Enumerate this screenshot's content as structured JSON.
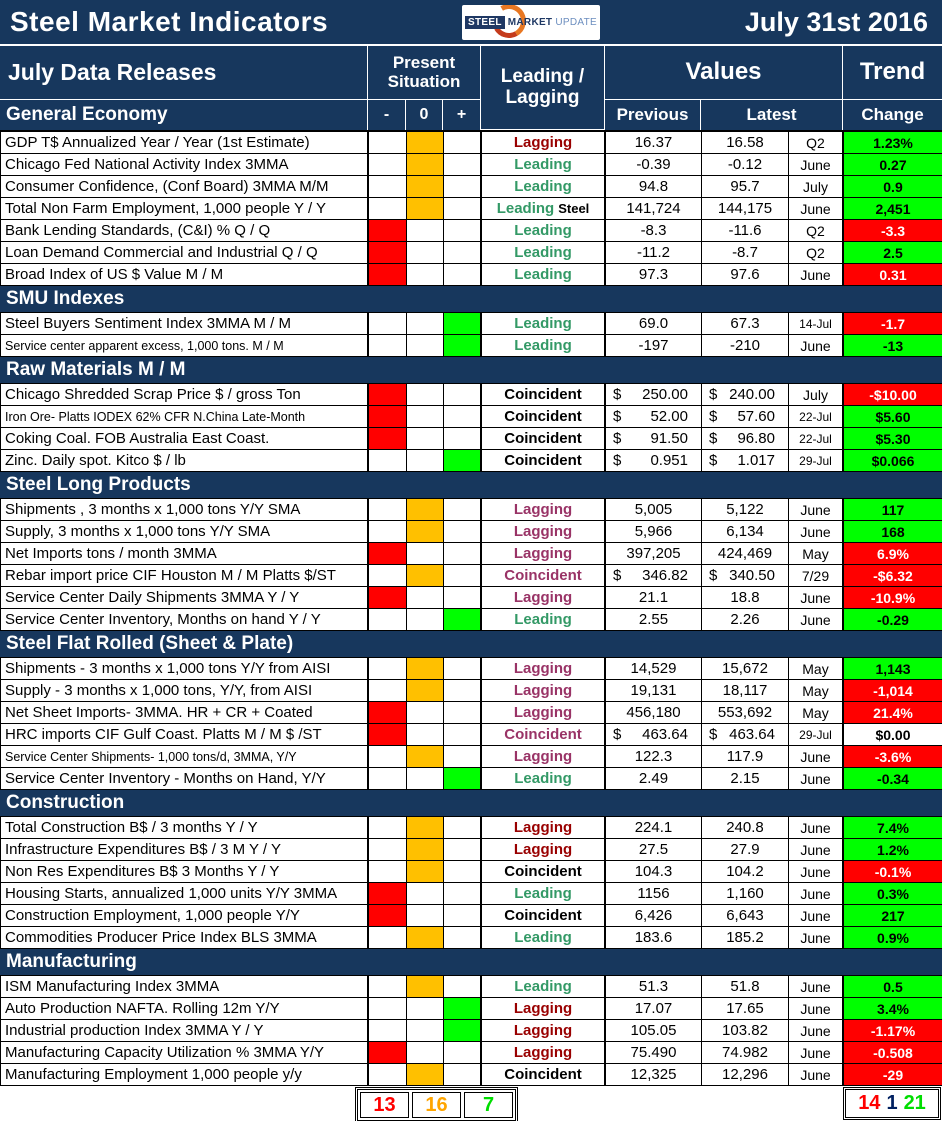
{
  "title_bar": {
    "title": "Steel Market Indicators",
    "date": "July 31st 2016",
    "logo": {
      "steel": "STEEL",
      "market": "MARKET",
      "update": "UPDATE"
    }
  },
  "header": {
    "data_releases": "July Data Releases",
    "present_situation": "Present Situation",
    "leading_lagging": "Leading / Lagging",
    "values": "Values",
    "trend": "Trend",
    "minus": "-",
    "zero": "0",
    "plus": "+",
    "previous": "Previous",
    "latest": "Latest",
    "change": "Change"
  },
  "colors": {
    "navy": "#17375D",
    "situation_minus": "#FF0000",
    "situation_zero": "#FFC000",
    "situation_plus": "#00FF00",
    "trend_up_bg": "#00FF00",
    "trend_down_bg": "#FF0000",
    "indicator_green": "#339966",
    "indicator_darkred": "#990000",
    "indicator_plum": "#993366",
    "indicator_black": "#000000"
  },
  "sections": [
    {
      "title": "General Economy",
      "rows": [
        {
          "label": "GDP T$ Annualized Year / Year (1st Estimate)",
          "situation": "zero",
          "indicator": "Lagging",
          "indicator_color": "darkred",
          "previous": "16.37",
          "latest": "16.58",
          "period": "Q2",
          "change": "1.23%",
          "trend": "up"
        },
        {
          "label": "Chicago Fed National Activity Index 3MMA",
          "situation": "zero",
          "indicator": "Leading",
          "indicator_color": "green",
          "previous": "-0.39",
          "latest": "-0.12",
          "period": "June",
          "change": "0.27",
          "trend": "up"
        },
        {
          "label": "Consumer Confidence, (Conf Board) 3MMA M/M",
          "situation": "zero",
          "indicator": "Leading",
          "indicator_color": "green",
          "previous": "94.8",
          "latest": "95.7",
          "period": "July",
          "change": "0.9",
          "trend": "up"
        },
        {
          "label": "Total Non Farm Employment, 1,000 people Y / Y",
          "situation": "zero",
          "indicator": "Leading",
          "indicator_suffix": "Steel",
          "indicator_color": "green",
          "previous": "141,724",
          "latest": "144,175",
          "period": "June",
          "change": "2,451",
          "trend": "up"
        },
        {
          "label": "Bank Lending Standards, (C&I) % Q / Q",
          "situation": "minus",
          "indicator": "Leading",
          "indicator_color": "green",
          "previous": "-8.3",
          "latest": "-11.6",
          "period": "Q2",
          "change": "-3.3",
          "trend": "down"
        },
        {
          "label": "Loan Demand Commercial and Industrial Q / Q",
          "situation": "minus",
          "indicator": "Leading",
          "indicator_color": "green",
          "previous": "-11.2",
          "latest": "-8.7",
          "period": "Q2",
          "change": "2.5",
          "trend": "up"
        },
        {
          "label": "Broad Index of US $ Value M / M",
          "situation": "minus",
          "indicator": "Leading",
          "indicator_color": "green",
          "previous": "97.3",
          "latest": "97.6",
          "period": "June",
          "change": "0.31",
          "trend": "down"
        }
      ]
    },
    {
      "title": "SMU Indexes",
      "rows": [
        {
          "label": "Steel Buyers Sentiment Index 3MMA M / M",
          "situation": "plus",
          "indicator": "Leading",
          "indicator_color": "green",
          "previous": "69.0",
          "latest": "67.3",
          "period": "14-Jul",
          "change": "-1.7",
          "trend": "down"
        },
        {
          "label": "Service center apparent excess, 1,000 tons. M / M",
          "situation": "plus",
          "indicator": "Leading",
          "indicator_color": "green",
          "previous": "-197",
          "latest": "-210",
          "period": "June",
          "change": "-13",
          "trend": "up"
        }
      ]
    },
    {
      "title": "Raw Materials M / M",
      "rows": [
        {
          "label": "Chicago Shredded Scrap Price $ / gross Ton",
          "situation": "minus",
          "indicator": "Coincident",
          "indicator_color": "black",
          "currency": true,
          "previous": "250.00",
          "latest": "240.00",
          "period": "July",
          "change": "-$10.00",
          "trend": "down"
        },
        {
          "label": "Iron Ore- Platts IODEX 62% CFR N.China Late-Month",
          "situation": "minus",
          "indicator": "Coincident",
          "indicator_color": "black",
          "currency": true,
          "previous": "52.00",
          "latest": "57.60",
          "period": "22-Jul",
          "change": "$5.60",
          "trend": "up"
        },
        {
          "label": "Coking Coal. FOB Australia East Coast.",
          "situation": "minus",
          "indicator": "Coincident",
          "indicator_color": "black",
          "currency": true,
          "previous": "91.50",
          "latest": "96.80",
          "period": "22-Jul",
          "change": "$5.30",
          "trend": "up"
        },
        {
          "label": "Zinc. Daily spot. Kitco $ / lb",
          "situation": "plus",
          "indicator": "Coincident",
          "indicator_color": "black",
          "currency": true,
          "previous": "0.951",
          "latest": "1.017",
          "period": "29-Jul",
          "change": "$0.066",
          "trend": "up"
        }
      ]
    },
    {
      "title": "Steel Long Products",
      "rows": [
        {
          "label": "Shipments , 3 months x 1,000 tons Y/Y SMA",
          "situation": "zero",
          "indicator": "Lagging",
          "indicator_color": "plum",
          "previous": "5,005",
          "latest": "5,122",
          "period": "June",
          "change": "117",
          "trend": "up"
        },
        {
          "label": "Supply, 3 months x 1,000 tons Y/Y SMA",
          "situation": "zero",
          "indicator": "Lagging",
          "indicator_color": "plum",
          "previous": "5,966",
          "latest": "6,134",
          "period": "June",
          "change": "168",
          "trend": "up"
        },
        {
          "label": "Net Imports tons / month 3MMA",
          "situation": "minus",
          "indicator": "Lagging",
          "indicator_color": "plum",
          "previous": "397,205",
          "latest": "424,469",
          "period": "May",
          "change": "6.9%",
          "trend": "down"
        },
        {
          "label": "Rebar import price CIF Houston M / M Platts $/ST",
          "situation": "zero",
          "indicator": "Coincident",
          "indicator_color": "plum",
          "currency": true,
          "previous": "346.82",
          "latest": "340.50",
          "period": "7/29",
          "change": "-$6.32",
          "trend": "down"
        },
        {
          "label": "Service Center Daily Shipments 3MMA Y / Y",
          "situation": "minus",
          "indicator": "Lagging",
          "indicator_color": "plum",
          "previous": "21.1",
          "latest": "18.8",
          "period": "June",
          "change": "-10.9%",
          "trend": "down"
        },
        {
          "label": "Service Center Inventory, Months on hand Y / Y",
          "situation": "plus",
          "indicator": "Leading",
          "indicator_color": "green",
          "previous": "2.55",
          "latest": "2.26",
          "period": "June",
          "change": "-0.29",
          "trend": "up"
        }
      ]
    },
    {
      "title": "Steel Flat Rolled (Sheet & Plate)",
      "rows": [
        {
          "label": "Shipments - 3 months x 1,000 tons Y/Y from AISI",
          "situation": "zero",
          "indicator": "Lagging",
          "indicator_color": "plum",
          "previous": "14,529",
          "latest": "15,672",
          "period": "May",
          "change": "1,143",
          "trend": "up"
        },
        {
          "label": "Supply - 3 months x 1,000 tons, Y/Y, from AISI",
          "situation": "zero",
          "indicator": "Lagging",
          "indicator_color": "plum",
          "previous": "19,131",
          "latest": "18,117",
          "period": "May",
          "change": "-1,014",
          "trend": "down"
        },
        {
          "label": "Net Sheet Imports- 3MMA. HR + CR + Coated",
          "situation": "minus",
          "indicator": "Lagging",
          "indicator_color": "plum",
          "previous": "456,180",
          "latest": "553,692",
          "period": "May",
          "change": "21.4%",
          "trend": "down"
        },
        {
          "label": "HRC imports CIF Gulf Coast. Platts M / M $ /ST",
          "situation": "minus",
          "indicator": "Coincident",
          "indicator_color": "plum",
          "currency": true,
          "previous": "463.64",
          "latest": "463.64",
          "period": "29-Jul",
          "change": "$0.00",
          "trend": "flat"
        },
        {
          "label": "Service Center Shipments- 1,000 tons/d, 3MMA, Y/Y",
          "situation": "zero",
          "indicator": "Lagging",
          "indicator_color": "plum",
          "previous": "122.3",
          "latest": "117.9",
          "period": "June",
          "change": "-3.6%",
          "trend": "down"
        },
        {
          "label": "Service Center Inventory - Months on Hand, Y/Y",
          "situation": "plus",
          "indicator": "Leading",
          "indicator_color": "green",
          "previous": "2.49",
          "latest": "2.15",
          "period": "June",
          "change": "-0.34",
          "trend": "up"
        }
      ]
    },
    {
      "title": "Construction",
      "rows": [
        {
          "label": "Total Construction B$ /  3 months Y / Y",
          "situation": "zero",
          "indicator": "Lagging",
          "indicator_color": "darkred",
          "previous": "224.1",
          "latest": "240.8",
          "period": "June",
          "change": "7.4%",
          "trend": "up"
        },
        {
          "label": "Infrastructure Expenditures B$ / 3 M    Y / Y",
          "situation": "zero",
          "indicator": "Lagging",
          "indicator_color": "darkred",
          "previous": "27.5",
          "latest": "27.9",
          "period": "June",
          "change": "1.2%",
          "trend": "up"
        },
        {
          "label": "Non Res Expenditures B$  3 Months   Y / Y",
          "situation": "zero",
          "indicator": "Coincident",
          "indicator_color": "black",
          "previous": "104.3",
          "latest": "104.2",
          "period": "June",
          "change": "-0.1%",
          "trend": "down"
        },
        {
          "label": "Housing Starts, annualized 1,000 units Y/Y 3MMA",
          "situation": "minus",
          "indicator": "Leading",
          "indicator_color": "green",
          "previous": "1156",
          "latest": "1,160",
          "period": "June",
          "change": "0.3%",
          "trend": "up"
        },
        {
          "label": "Construction Employment, 1,000 people Y/Y",
          "situation": "minus",
          "indicator": "Coincident",
          "indicator_color": "black",
          "previous": "6,426",
          "latest": "6,643",
          "period": "June",
          "change": "217",
          "trend": "up"
        },
        {
          "label": "Commodities Producer Price Index BLS 3MMA",
          "situation": "zero",
          "indicator": "Leading",
          "indicator_color": "green",
          "previous": "183.6",
          "latest": "185.2",
          "period": "June",
          "change": "0.9%",
          "trend": "up"
        }
      ]
    },
    {
      "title": "Manufacturing",
      "rows": [
        {
          "label": "ISM Manufacturing Index 3MMA",
          "situation": "zero",
          "indicator": "Leading",
          "indicator_color": "green",
          "previous": "51.3",
          "latest": "51.8",
          "period": "June",
          "change": "0.5",
          "trend": "up"
        },
        {
          "label": "Auto Production NAFTA. Rolling 12m Y/Y",
          "situation": "plus",
          "indicator": "Lagging",
          "indicator_color": "darkred",
          "previous": "17.07",
          "latest": "17.65",
          "period": "June",
          "change": "3.4%",
          "trend": "up"
        },
        {
          "label": "Industrial production Index 3MMA Y / Y",
          "situation": "plus",
          "indicator": "Lagging",
          "indicator_color": "darkred",
          "previous": "105.05",
          "latest": "103.82",
          "period": "June",
          "change": "-1.17%",
          "trend": "down"
        },
        {
          "label": "Manufacturing Capacity Utilization % 3MMA Y/Y",
          "situation": "minus",
          "indicator": "Lagging",
          "indicator_color": "darkred",
          "previous": "75.490",
          "latest": "74.982",
          "period": "June",
          "change": "-0.508",
          "trend": "down"
        },
        {
          "label": "Manufacturing Employment 1,000 people y/y",
          "situation": "zero",
          "indicator": "Coincident",
          "indicator_color": "black",
          "previous": "12,325",
          "latest": "12,296",
          "period": "June",
          "change": "-29",
          "trend": "down"
        }
      ]
    }
  ],
  "footer": {
    "present_situation_counts": [
      {
        "value": "13",
        "color": "#FF0000"
      },
      {
        "value": "16",
        "color": "#FFA500"
      },
      {
        "value": "7",
        "color": "#00DD00"
      }
    ],
    "trend_counts": [
      {
        "value": "14",
        "color": "#FF0000"
      },
      {
        "value": "1",
        "color": "#002060"
      },
      {
        "value": "21",
        "color": "#00DD00"
      }
    ]
  }
}
